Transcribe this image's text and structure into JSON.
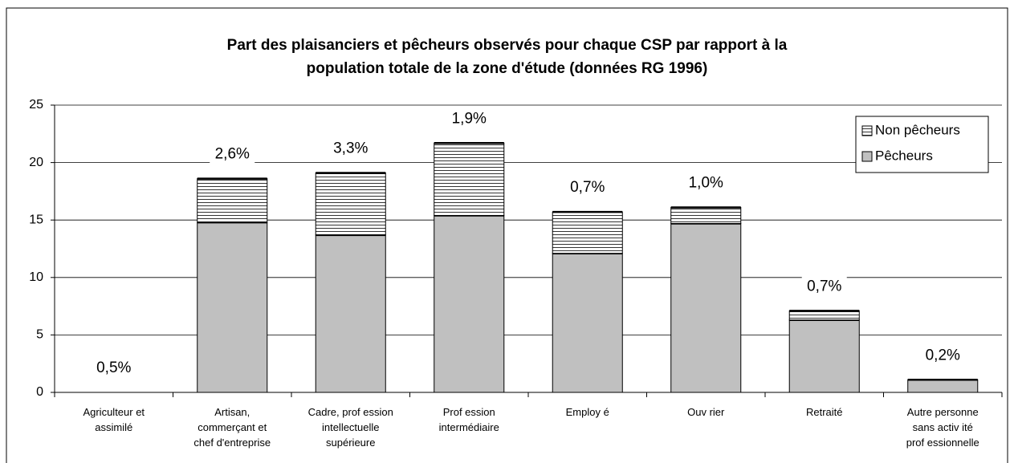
{
  "chart_data": {
    "type": "stacked_bar",
    "title": "Part des plaisanciers et pêcheurs observés pour chaque CSP par rapport à la\npopulation totale de la zone d'étude (données RG 1996)",
    "categories": [
      "Agriculteur et\nassimilé",
      "Artisan,\ncommerçant et\nchef d'entreprise",
      "Cadre, prof ession\nintellectuelle\nsupérieure",
      "Prof ession\nintermédiaire",
      "Employ é",
      "Ouv rier",
      "Retraité",
      "Autre personne\nsans activ ité\nprof essionnelle"
    ],
    "series": [
      {
        "name": "Pêcheurs",
        "color": "#c0c0c0",
        "values": [
          0,
          14.8,
          13.7,
          15.4,
          12.1,
          14.7,
          6.3,
          1.1
        ]
      },
      {
        "name": "Non pêcheurs",
        "color": "#ffffff",
        "values": [
          0,
          3.8,
          5.4,
          6.3,
          3.6,
          1.4,
          0.8,
          0
        ]
      }
    ],
    "annotations": [
      "0,5%",
      "2,6%",
      "3,3%",
      "1,9%",
      "0,7%",
      "1,0%",
      "0,7%",
      "0,2%"
    ],
    "ylim": [
      0,
      25
    ],
    "yticks": [
      0,
      5,
      10,
      15,
      20,
      25
    ],
    "grid": true,
    "legend": "upper right"
  }
}
